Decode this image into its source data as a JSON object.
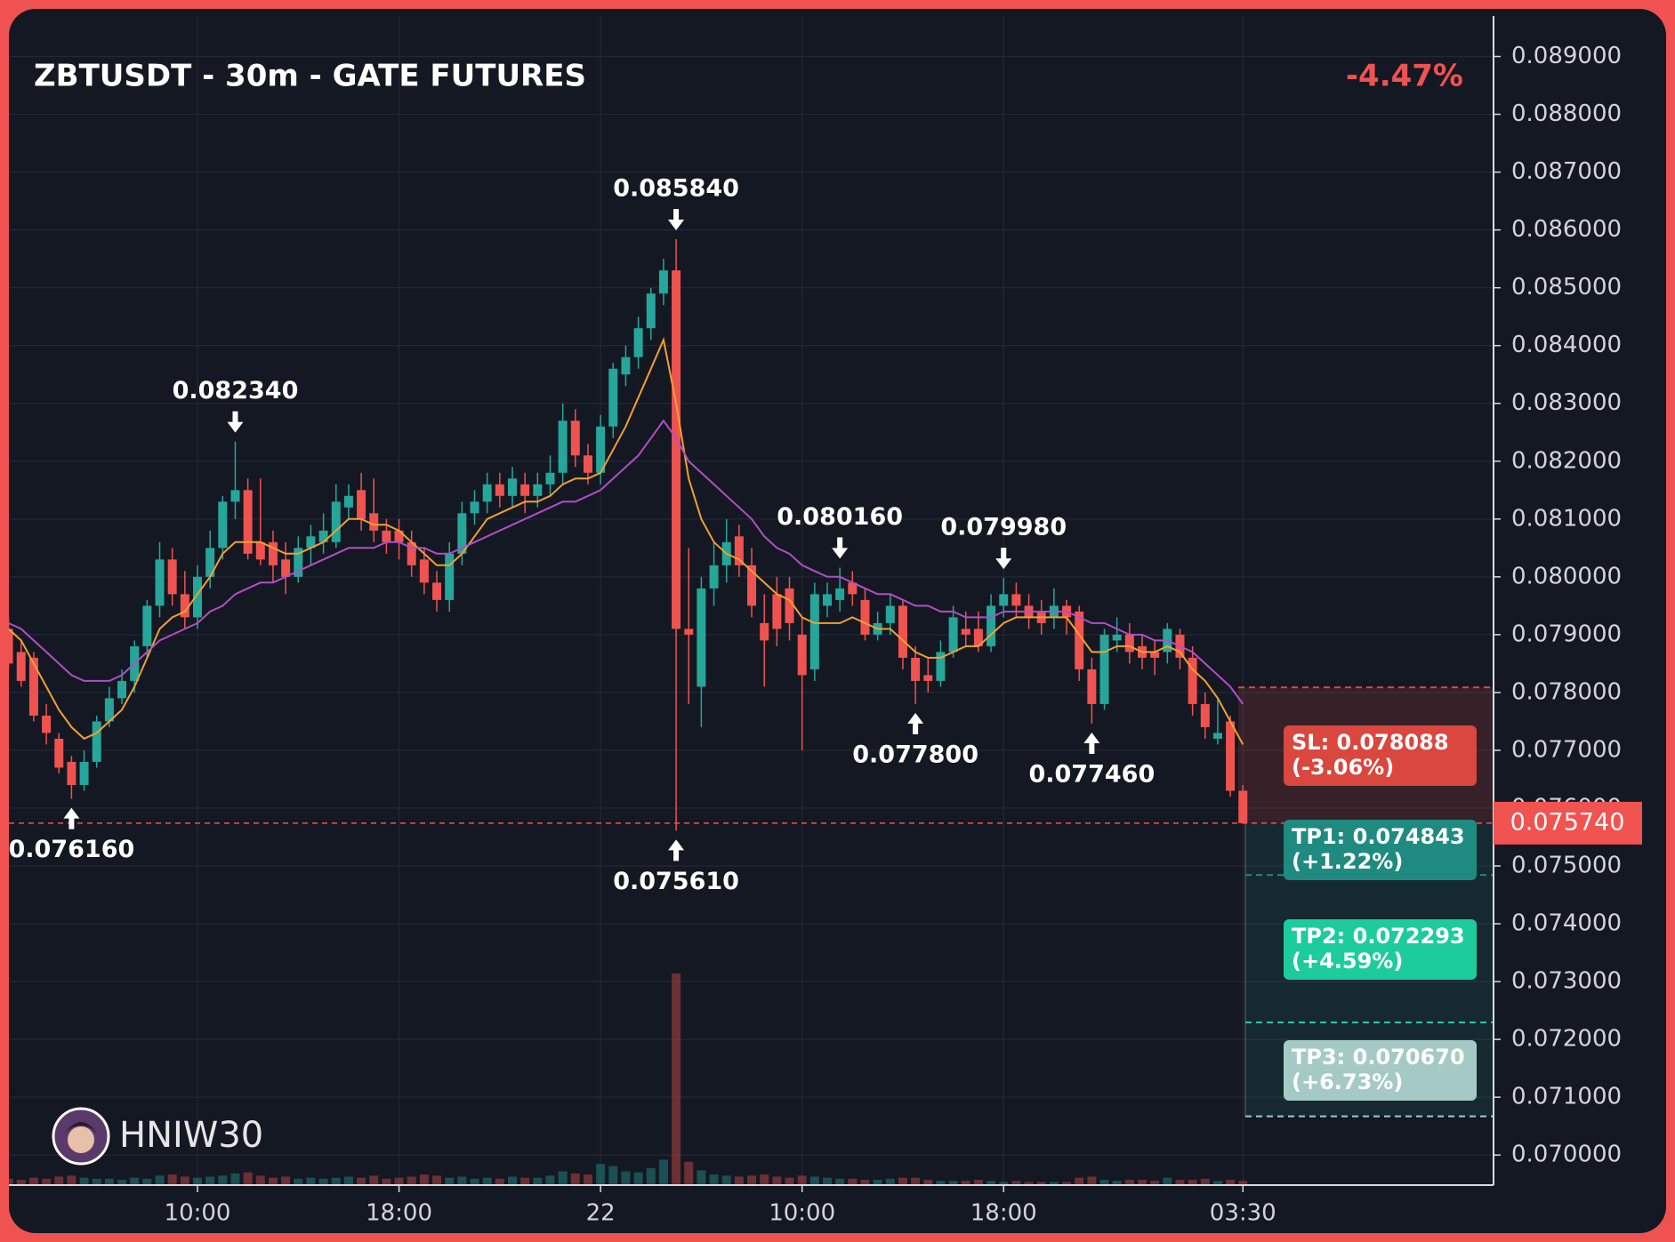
{
  "chart_data": {
    "type": "candlestick",
    "title": "ZBTUSDT - 30m - GATE FUTURES",
    "change": "-4.47%",
    "watermark": "HNIW30",
    "up_color": "#26a69a",
    "down_color": "#ef5350",
    "grid": true,
    "ylim": [
      0.06948,
      0.0897
    ],
    "yticks": [
      {
        "value": 0.089,
        "label": "0.089000"
      },
      {
        "value": 0.088,
        "label": "0.088000"
      },
      {
        "value": 0.087,
        "label": "0.087000"
      },
      {
        "value": 0.086,
        "label": "0.086000"
      },
      {
        "value": 0.085,
        "label": "0.085000"
      },
      {
        "value": 0.084,
        "label": "0.084000"
      },
      {
        "value": 0.083,
        "label": "0.083000"
      },
      {
        "value": 0.082,
        "label": "0.082000"
      },
      {
        "value": 0.081,
        "label": "0.081000"
      },
      {
        "value": 0.08,
        "label": "0.080000"
      },
      {
        "value": 0.079,
        "label": "0.079000"
      },
      {
        "value": 0.078,
        "label": "0.078000"
      },
      {
        "value": 0.077,
        "label": "0.077000"
      },
      {
        "value": 0.076,
        "label": "0.076000"
      },
      {
        "value": 0.075,
        "label": "0.075000"
      },
      {
        "value": 0.074,
        "label": "0.074000"
      },
      {
        "value": 0.073,
        "label": "0.073000"
      },
      {
        "value": 0.072,
        "label": "0.072000"
      },
      {
        "value": 0.071,
        "label": "0.071000"
      },
      {
        "value": 0.07,
        "label": "0.070000"
      }
    ],
    "xticks": [
      {
        "value": 15,
        "label": "10:00"
      },
      {
        "value": 31,
        "label": "18:00"
      },
      {
        "value": 47,
        "label": "22"
      },
      {
        "value": 63,
        "label": "10:00"
      },
      {
        "value": 79,
        "label": "18:00"
      },
      {
        "value": 98,
        "label": "03:30"
      }
    ],
    "candles": [
      [
        0.0791,
        0.0793,
        0.0784,
        0.0785
      ],
      [
        0.0787,
        0.0789,
        0.0781,
        0.0782
      ],
      [
        0.0786,
        0.0787,
        0.0775,
        0.0776
      ],
      [
        0.0776,
        0.0778,
        0.0771,
        0.0773
      ],
      [
        0.0772,
        0.0773,
        0.0766,
        0.0767
      ],
      [
        0.0768,
        0.0769,
        0.07616,
        0.0764
      ],
      [
        0.0764,
        0.077,
        0.0763,
        0.0768
      ],
      [
        0.0768,
        0.0776,
        0.0767,
        0.0775
      ],
      [
        0.0775,
        0.0781,
        0.0774,
        0.0779
      ],
      [
        0.0779,
        0.0784,
        0.0778,
        0.0782
      ],
      [
        0.0782,
        0.0789,
        0.078,
        0.0788
      ],
      [
        0.0788,
        0.0796,
        0.0786,
        0.0795
      ],
      [
        0.0795,
        0.0806,
        0.0793,
        0.0803
      ],
      [
        0.0803,
        0.0805,
        0.0795,
        0.0797
      ],
      [
        0.0797,
        0.0801,
        0.0791,
        0.0793
      ],
      [
        0.0793,
        0.0802,
        0.0791,
        0.08
      ],
      [
        0.08,
        0.0808,
        0.0798,
        0.0805
      ],
      [
        0.0805,
        0.0814,
        0.0803,
        0.0813
      ],
      [
        0.0813,
        0.08234,
        0.081,
        0.0815
      ],
      [
        0.0815,
        0.0817,
        0.0803,
        0.0804
      ],
      [
        0.0806,
        0.0817,
        0.0802,
        0.0803
      ],
      [
        0.0806,
        0.0808,
        0.0799,
        0.0802
      ],
      [
        0.0803,
        0.0806,
        0.0797,
        0.08
      ],
      [
        0.08,
        0.0807,
        0.0799,
        0.0805
      ],
      [
        0.0805,
        0.0809,
        0.0802,
        0.0807
      ],
      [
        0.0806,
        0.0811,
        0.0804,
        0.0808
      ],
      [
        0.0806,
        0.0816,
        0.0805,
        0.0813
      ],
      [
        0.0812,
        0.0816,
        0.081,
        0.0814
      ],
      [
        0.0815,
        0.0818,
        0.0808,
        0.081
      ],
      [
        0.0811,
        0.0817,
        0.0806,
        0.0808
      ],
      [
        0.0808,
        0.081,
        0.0804,
        0.0806
      ],
      [
        0.0808,
        0.081,
        0.0803,
        0.0806
      ],
      [
        0.0806,
        0.0808,
        0.08,
        0.0802
      ],
      [
        0.0803,
        0.0805,
        0.0797,
        0.0799
      ],
      [
        0.0799,
        0.0801,
        0.0794,
        0.0796
      ],
      [
        0.0796,
        0.0806,
        0.0794,
        0.0804
      ],
      [
        0.0804,
        0.0813,
        0.0802,
        0.0811
      ],
      [
        0.0811,
        0.0815,
        0.0809,
        0.0813
      ],
      [
        0.0813,
        0.0818,
        0.0811,
        0.0816
      ],
      [
        0.0816,
        0.0818,
        0.0812,
        0.0814
      ],
      [
        0.0814,
        0.0819,
        0.0812,
        0.0817
      ],
      [
        0.0816,
        0.0818,
        0.0811,
        0.0814
      ],
      [
        0.0814,
        0.0818,
        0.0812,
        0.0816
      ],
      [
        0.0816,
        0.0821,
        0.0814,
        0.0818
      ],
      [
        0.0818,
        0.083,
        0.0816,
        0.0827
      ],
      [
        0.0827,
        0.0829,
        0.0819,
        0.0821
      ],
      [
        0.0821,
        0.0823,
        0.0816,
        0.0818
      ],
      [
        0.0818,
        0.0828,
        0.0816,
        0.0826
      ],
      [
        0.0826,
        0.0837,
        0.0824,
        0.0836
      ],
      [
        0.0835,
        0.084,
        0.0833,
        0.0838
      ],
      [
        0.0838,
        0.0845,
        0.0836,
        0.0843
      ],
      [
        0.0843,
        0.085,
        0.0841,
        0.0849
      ],
      [
        0.0849,
        0.0855,
        0.0847,
        0.0853
      ],
      [
        0.0853,
        0.08584,
        0.07561,
        0.0791
      ],
      [
        0.0791,
        0.0805,
        0.0778,
        0.079
      ],
      [
        0.0781,
        0.08,
        0.0774,
        0.0798
      ],
      [
        0.0798,
        0.0806,
        0.0795,
        0.0802
      ],
      [
        0.0802,
        0.081,
        0.0799,
        0.0806
      ],
      [
        0.0807,
        0.0809,
        0.08,
        0.0802
      ],
      [
        0.0802,
        0.0805,
        0.0793,
        0.0795
      ],
      [
        0.0792,
        0.0797,
        0.0781,
        0.0789
      ],
      [
        0.0797,
        0.08,
        0.0788,
        0.0791
      ],
      [
        0.0798,
        0.08,
        0.0789,
        0.0792
      ],
      [
        0.079,
        0.0793,
        0.077,
        0.0783
      ],
      [
        0.0784,
        0.0799,
        0.0782,
        0.0797
      ],
      [
        0.0795,
        0.0799,
        0.0793,
        0.0797
      ],
      [
        0.0796,
        0.08016,
        0.0794,
        0.0798
      ],
      [
        0.0799,
        0.0801,
        0.0795,
        0.0797
      ],
      [
        0.0796,
        0.0798,
        0.0789,
        0.079
      ],
      [
        0.079,
        0.0794,
        0.0789,
        0.0792
      ],
      [
        0.0792,
        0.0797,
        0.079,
        0.0795
      ],
      [
        0.0795,
        0.0796,
        0.0784,
        0.0786
      ],
      [
        0.0786,
        0.0788,
        0.0778,
        0.0782
      ],
      [
        0.0783,
        0.0786,
        0.078,
        0.0782
      ],
      [
        0.0782,
        0.0789,
        0.0781,
        0.0787
      ],
      [
        0.0787,
        0.0795,
        0.0786,
        0.0793
      ],
      [
        0.0791,
        0.0794,
        0.0788,
        0.079
      ],
      [
        0.0791,
        0.0794,
        0.0787,
        0.0788
      ],
      [
        0.0788,
        0.0797,
        0.0787,
        0.0795
      ],
      [
        0.0795,
        0.07998,
        0.0793,
        0.0797
      ],
      [
        0.0797,
        0.0799,
        0.0793,
        0.0795
      ],
      [
        0.0795,
        0.0797,
        0.0791,
        0.0793
      ],
      [
        0.0794,
        0.0796,
        0.079,
        0.0792
      ],
      [
        0.0793,
        0.0798,
        0.0791,
        0.0795
      ],
      [
        0.0795,
        0.0796,
        0.079,
        0.0793
      ],
      [
        0.0794,
        0.0795,
        0.0782,
        0.0784
      ],
      [
        0.0784,
        0.0786,
        0.07746,
        0.0778
      ],
      [
        0.0778,
        0.0791,
        0.0777,
        0.079
      ],
      [
        0.0789,
        0.0793,
        0.0787,
        0.079
      ],
      [
        0.079,
        0.0792,
        0.0785,
        0.0787
      ],
      [
        0.0788,
        0.079,
        0.0784,
        0.0786
      ],
      [
        0.0787,
        0.0789,
        0.0783,
        0.0786
      ],
      [
        0.0787,
        0.0792,
        0.0785,
        0.0791
      ],
      [
        0.079,
        0.0791,
        0.0784,
        0.0786
      ],
      [
        0.0786,
        0.0788,
        0.0776,
        0.0778
      ],
      [
        0.0778,
        0.078,
        0.0772,
        0.0774
      ],
      [
        0.0772,
        0.0779,
        0.0771,
        0.0773
      ],
      [
        0.0775,
        0.0776,
        0.0762,
        0.0763
      ],
      [
        0.0763,
        0.0764,
        0.07574,
        0.07574
      ]
    ],
    "volume": [
      6,
      5,
      7,
      6,
      8,
      9,
      7,
      6,
      6,
      5,
      7,
      6,
      9,
      10,
      8,
      7,
      8,
      9,
      11,
      12,
      9,
      7,
      8,
      6,
      7,
      6,
      7,
      8,
      7,
      9,
      6,
      7,
      8,
      10,
      9,
      7,
      8,
      6,
      7,
      6,
      8,
      7,
      7,
      9,
      13,
      11,
      10,
      20,
      18,
      13,
      12,
      16,
      24,
      200,
      22,
      14,
      10,
      9,
      8,
      9,
      10,
      8,
      7,
      9,
      8,
      7,
      6,
      6,
      5,
      5,
      6,
      7,
      7,
      5,
      4,
      4,
      4,
      5,
      4,
      3,
      4,
      3,
      3,
      3,
      3,
      7,
      8,
      5,
      4,
      5,
      5,
      4,
      7,
      5,
      5,
      6,
      4,
      5,
      4
    ],
    "series": [
      {
        "color": "#f0a030",
        "values": [
          0.0791,
          0.0789,
          0.0785,
          0.0781,
          0.0777,
          0.0774,
          0.0772,
          0.0773,
          0.0775,
          0.0777,
          0.0781,
          0.0786,
          0.0791,
          0.0793,
          0.0794,
          0.0797,
          0.08,
          0.0804,
          0.0806,
          0.0806,
          0.0806,
          0.0805,
          0.0804,
          0.0804,
          0.0805,
          0.0806,
          0.0808,
          0.081,
          0.081,
          0.0809,
          0.0809,
          0.0808,
          0.0806,
          0.0804,
          0.0802,
          0.0802,
          0.0804,
          0.0807,
          0.081,
          0.0811,
          0.0812,
          0.0813,
          0.0813,
          0.0814,
          0.0816,
          0.0817,
          0.0817,
          0.0818,
          0.0822,
          0.0826,
          0.0831,
          0.0836,
          0.0841,
          0.083,
          0.0817,
          0.081,
          0.0806,
          0.0804,
          0.0803,
          0.0801,
          0.0799,
          0.0797,
          0.0796,
          0.0793,
          0.0792,
          0.0792,
          0.0792,
          0.0793,
          0.0792,
          0.0791,
          0.0791,
          0.0789,
          0.0787,
          0.0786,
          0.0786,
          0.0787,
          0.0788,
          0.0788,
          0.079,
          0.0792,
          0.0793,
          0.0793,
          0.0793,
          0.0793,
          0.0793,
          0.079,
          0.0787,
          0.0787,
          0.0788,
          0.0788,
          0.0787,
          0.0787,
          0.0788,
          0.0787,
          0.0784,
          0.0782,
          0.0779,
          0.0775,
          0.0771
        ]
      },
      {
        "color": "#b04fc6",
        "values": [
          0.0792,
          0.0791,
          0.0789,
          0.0787,
          0.0785,
          0.0783,
          0.0782,
          0.0782,
          0.0782,
          0.0783,
          0.0785,
          0.0787,
          0.0789,
          0.079,
          0.0791,
          0.0792,
          0.0794,
          0.0795,
          0.0797,
          0.0798,
          0.0799,
          0.0799,
          0.08,
          0.0801,
          0.0802,
          0.0803,
          0.0804,
          0.0805,
          0.0805,
          0.0805,
          0.0806,
          0.0806,
          0.0805,
          0.0805,
          0.0804,
          0.0804,
          0.0805,
          0.0806,
          0.0807,
          0.0808,
          0.0809,
          0.081,
          0.0811,
          0.0812,
          0.0813,
          0.0813,
          0.0814,
          0.0815,
          0.0817,
          0.0819,
          0.0821,
          0.0824,
          0.0827,
          0.0824,
          0.082,
          0.0818,
          0.0816,
          0.0814,
          0.0812,
          0.081,
          0.0807,
          0.0805,
          0.0804,
          0.0802,
          0.0801,
          0.08,
          0.08,
          0.0799,
          0.0798,
          0.0797,
          0.0797,
          0.0796,
          0.0795,
          0.0795,
          0.0794,
          0.0794,
          0.0793,
          0.0793,
          0.0793,
          0.0794,
          0.0794,
          0.0794,
          0.0794,
          0.0794,
          0.0794,
          0.0793,
          0.0792,
          0.0792,
          0.0791,
          0.079,
          0.079,
          0.0789,
          0.0789,
          0.0788,
          0.0787,
          0.0785,
          0.0783,
          0.0781,
          0.0778
        ]
      }
    ],
    "annotations": [
      {
        "index": 18,
        "value": 0.08234,
        "label": "0.082340",
        "kind": "high"
      },
      {
        "index": 53,
        "value": 0.08584,
        "label": "0.085840",
        "kind": "high"
      },
      {
        "index": 66,
        "value": 0.08016,
        "label": "0.080160",
        "kind": "high"
      },
      {
        "index": 79,
        "value": 0.07998,
        "label": "0.079980",
        "kind": "high"
      },
      {
        "index": 5,
        "value": 0.07616,
        "label": "0.076160",
        "kind": "low"
      },
      {
        "index": 53,
        "value": 0.07561,
        "label": "0.075610",
        "kind": "low"
      },
      {
        "index": 72,
        "value": 0.0778,
        "label": "0.077800",
        "kind": "low"
      },
      {
        "index": 86,
        "value": 0.07746,
        "label": "0.077460",
        "kind": "low"
      }
    ],
    "last_price": {
      "value": 0.07574,
      "label": "0.075740",
      "color": "#f05350"
    },
    "levels": [
      {
        "name": "SL",
        "value": 0.078088,
        "label": "SL: 0.078088",
        "change": "(-3.06%)",
        "color": "#d9473f"
      },
      {
        "name": "TP1",
        "value": 0.074843,
        "label": "TP1: 0.074843",
        "change": "(+1.22%)",
        "color": "#1f8a80"
      },
      {
        "name": "TP2",
        "value": 0.072293,
        "label": "TP2: 0.072293",
        "change": "(+4.59%)",
        "color": "#1dcc9c"
      },
      {
        "name": "TP3",
        "value": 0.07067,
        "label": "TP3: 0.070670",
        "change": "(+6.73%)",
        "color": "#a5cac5"
      }
    ]
  }
}
